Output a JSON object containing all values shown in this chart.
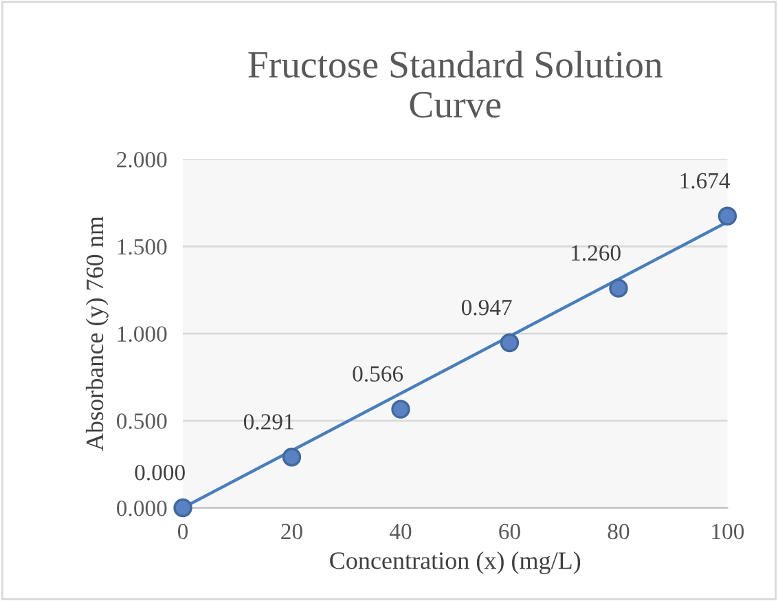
{
  "chart_data": {
    "type": "scatter",
    "title": "Fructose Standard Solution\nCurve",
    "xlabel": "Concentration (x) (mg/L)",
    "ylabel": "Absorbance (y) 760 nm",
    "series": [
      {
        "type": "line",
        "color": "#4a7ebb",
        "x": [
          0,
          100
        ],
        "values": [
          0,
          1.64
        ],
        "marker": "none"
      },
      {
        "color": "#5a82c2",
        "x": [
          0,
          20,
          40,
          60,
          80,
          100
        ],
        "values": [
          0.0,
          0.291,
          0.566,
          0.947,
          1.26,
          1.674
        ],
        "value_labels": [
          "0.000",
          "0.291",
          "0.566",
          "0.947",
          "1.260",
          "1.674"
        ],
        "marker": "circle"
      }
    ],
    "xlim": [
      0,
      100
    ],
    "xticks": [
      0,
      20,
      40,
      60,
      80,
      100
    ],
    "ylim": [
      0,
      2
    ],
    "yticks": [
      {
        "value": 0,
        "label": "0.000"
      },
      {
        "value": 0.5,
        "label": "0.500"
      },
      {
        "value": 1,
        "label": "1.000"
      },
      {
        "value": 1.5,
        "label": "1.500"
      },
      {
        "value": 2,
        "label": "2.000"
      }
    ],
    "grid": "y",
    "legend": false
  }
}
